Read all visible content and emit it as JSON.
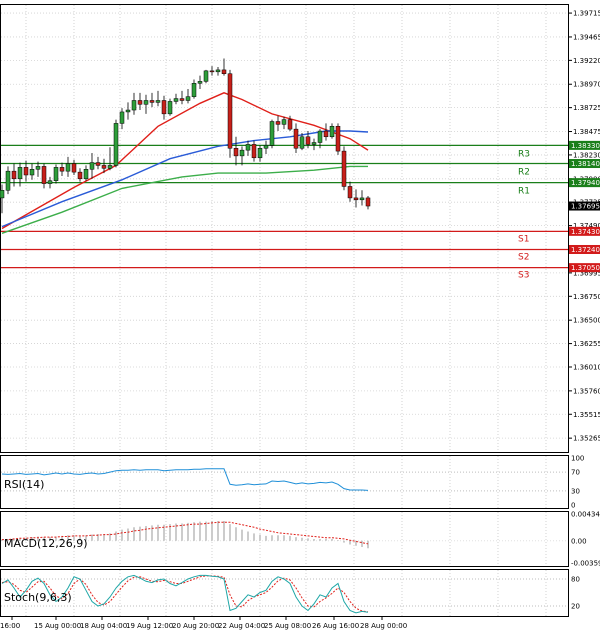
{
  "chart_data": {
    "type": "candlestick",
    "instrument_note": "USD/CAD style H4 chart",
    "price_axis": {
      "ticks": [
        "1.39715",
        "1.39465",
        "1.39220",
        "1.38970",
        "1.38725",
        "1.38475",
        "1.38230",
        "1.37980",
        "1.37735",
        "1.37490",
        "1.37240",
        "1.36995",
        "1.36750",
        "1.36500",
        "1.36255",
        "1.36010",
        "1.35760",
        "1.35515",
        "1.35265"
      ],
      "ylim": [
        1.3512,
        1.3981
      ]
    },
    "current_price": "1.37695",
    "levels": [
      {
        "label": "R3",
        "value": 1.3833,
        "text": "1.38330",
        "kind": "resistance"
      },
      {
        "label": "R2",
        "value": 1.3814,
        "text": "1.38140",
        "kind": "resistance"
      },
      {
        "label": "R1",
        "value": 1.3794,
        "text": "1.37940",
        "kind": "resistance"
      },
      {
        "label": "S1",
        "value": 1.3743,
        "text": "1.37430",
        "kind": "support"
      },
      {
        "label": "S2",
        "value": 1.3724,
        "text": "1.37240",
        "kind": "support"
      },
      {
        "label": "S3",
        "value": 1.3705,
        "text": "1.37050",
        "kind": "support"
      }
    ],
    "time_labels": [
      "16:00",
      "15 Aug 00:00",
      "18 Aug 04:00",
      "19 Aug 12:00",
      "20 Aug 20:00",
      "22 Aug 04:00",
      "25 Aug 08:00",
      "26 Aug 16:00",
      "28 Aug 00:00"
    ],
    "candles": [
      [
        1.3778,
        1.3792,
        1.3762,
        1.3786
      ],
      [
        1.3786,
        1.3811,
        1.3782,
        1.3806
      ],
      [
        1.3806,
        1.3814,
        1.379,
        1.3798
      ],
      [
        1.3798,
        1.3815,
        1.379,
        1.381
      ],
      [
        1.381,
        1.3817,
        1.3795,
        1.3802
      ],
      [
        1.3802,
        1.3814,
        1.3797,
        1.3808
      ],
      [
        1.3808,
        1.3816,
        1.38,
        1.3811
      ],
      [
        1.3811,
        1.3814,
        1.3788,
        1.3793
      ],
      [
        1.3793,
        1.38,
        1.3788,
        1.3796
      ],
      [
        1.3796,
        1.3813,
        1.3793,
        1.381
      ],
      [
        1.381,
        1.3815,
        1.3801,
        1.3806
      ],
      [
        1.3806,
        1.3821,
        1.38,
        1.3814
      ],
      [
        1.3814,
        1.3818,
        1.3802,
        1.3805
      ],
      [
        1.3805,
        1.3809,
        1.3795,
        1.3798
      ],
      [
        1.3798,
        1.3812,
        1.3796,
        1.3808
      ],
      [
        1.3808,
        1.3825,
        1.3798,
        1.3815
      ],
      [
        1.3815,
        1.3821,
        1.3808,
        1.3812
      ],
      [
        1.3812,
        1.3819,
        1.3804,
        1.3809
      ],
      [
        1.3809,
        1.3831,
        1.3807,
        1.3812
      ],
      [
        1.3812,
        1.386,
        1.381,
        1.3856
      ],
      [
        1.3856,
        1.3872,
        1.385,
        1.3868
      ],
      [
        1.3868,
        1.3878,
        1.386,
        1.387
      ],
      [
        1.387,
        1.3888,
        1.3865,
        1.388
      ],
      [
        1.388,
        1.3888,
        1.387,
        1.3876
      ],
      [
        1.3876,
        1.3886,
        1.3866,
        1.388
      ],
      [
        1.388,
        1.3888,
        1.3873,
        1.3878
      ],
      [
        1.3878,
        1.389,
        1.3874,
        1.388
      ],
      [
        1.388,
        1.3885,
        1.386,
        1.3866
      ],
      [
        1.3866,
        1.3882,
        1.3864,
        1.3879
      ],
      [
        1.3879,
        1.3887,
        1.3876,
        1.3882
      ],
      [
        1.3882,
        1.389,
        1.3876,
        1.388
      ],
      [
        1.388,
        1.3892,
        1.3877,
        1.3884
      ],
      [
        1.3884,
        1.3902,
        1.3882,
        1.3898
      ],
      [
        1.3898,
        1.3906,
        1.3892,
        1.39
      ],
      [
        1.39,
        1.3912,
        1.3898,
        1.3911
      ],
      [
        1.3911,
        1.3916,
        1.3906,
        1.391
      ],
      [
        1.391,
        1.3915,
        1.3906,
        1.3912
      ],
      [
        1.3912,
        1.3924,
        1.3906,
        1.3908
      ],
      [
        1.3908,
        1.3912,
        1.382,
        1.383
      ],
      [
        1.383,
        1.3842,
        1.3812,
        1.3822
      ],
      [
        1.3822,
        1.3832,
        1.3812,
        1.3828
      ],
      [
        1.3828,
        1.3838,
        1.3822,
        1.3834
      ],
      [
        1.3834,
        1.3838,
        1.3816,
        1.382
      ],
      [
        1.382,
        1.3833,
        1.3816,
        1.383
      ],
      [
        1.383,
        1.3838,
        1.3824,
        1.3833
      ],
      [
        1.3833,
        1.386,
        1.383,
        1.3858
      ],
      [
        1.3858,
        1.3864,
        1.3848,
        1.3855
      ],
      [
        1.3855,
        1.3863,
        1.385,
        1.386
      ],
      [
        1.386,
        1.3864,
        1.3848,
        1.385
      ],
      [
        1.385,
        1.3856,
        1.3825,
        1.383
      ],
      [
        1.383,
        1.3846,
        1.3828,
        1.3842
      ],
      [
        1.3842,
        1.3848,
        1.383,
        1.3834
      ],
      [
        1.3834,
        1.384,
        1.3828,
        1.3836
      ],
      [
        1.3836,
        1.385,
        1.383,
        1.3848
      ],
      [
        1.3848,
        1.3856,
        1.3838,
        1.3842
      ],
      [
        1.3842,
        1.3856,
        1.384,
        1.3853
      ],
      [
        1.3853,
        1.3856,
        1.3823,
        1.3827
      ],
      [
        1.3827,
        1.3832,
        1.3786,
        1.379
      ],
      [
        1.379,
        1.3795,
        1.3774,
        1.3778
      ],
      [
        1.3778,
        1.3787,
        1.3768,
        1.3776
      ],
      [
        1.3776,
        1.3786,
        1.377,
        1.3778
      ],
      [
        1.3778,
        1.378,
        1.3766,
        1.37695
      ]
    ],
    "moving_averages": [
      {
        "name": "MA fast",
        "color": "#e0201a",
        "points": [
          [
            0,
            1.3746
          ],
          [
            12,
            1.3789
          ],
          [
            19,
            1.3812
          ],
          [
            26,
            1.3853
          ],
          [
            33,
            1.3877
          ],
          [
            37,
            1.3888
          ],
          [
            40,
            1.3881
          ],
          [
            45,
            1.3866
          ],
          [
            52,
            1.3854
          ],
          [
            58,
            1.384
          ],
          [
            61,
            1.3828
          ]
        ]
      },
      {
        "name": "MA mid",
        "color": "#2a5bd7",
        "points": [
          [
            0,
            1.3748
          ],
          [
            10,
            1.3774
          ],
          [
            20,
            1.3797
          ],
          [
            28,
            1.3819
          ],
          [
            36,
            1.3832
          ],
          [
            42,
            1.3838
          ],
          [
            48,
            1.3842
          ],
          [
            54,
            1.3848
          ],
          [
            58,
            1.3848
          ],
          [
            61,
            1.3847
          ]
        ]
      },
      {
        "name": "MA slow",
        "color": "#3cae4a",
        "points": [
          [
            0,
            1.3741
          ],
          [
            10,
            1.3763
          ],
          [
            20,
            1.3788
          ],
          [
            30,
            1.38
          ],
          [
            36,
            1.3804
          ],
          [
            44,
            1.3804
          ],
          [
            52,
            1.3807
          ],
          [
            58,
            1.3811
          ],
          [
            61,
            1.3811
          ]
        ]
      }
    ],
    "indicators": {
      "rsi": {
        "label": "RSI(14)",
        "ticks": [
          "100",
          "70",
          "30",
          "0"
        ],
        "color": "#1f8fd8",
        "values": [
          66,
          65,
          66,
          67,
          65,
          66,
          67,
          64,
          66,
          68,
          66,
          68,
          66,
          65,
          67,
          68,
          66,
          67,
          70,
          73,
          74,
          74,
          75,
          74,
          75,
          75,
          75,
          73,
          74,
          75,
          75,
          75,
          76,
          76,
          77,
          77,
          77,
          77,
          44,
          42,
          43,
          45,
          43,
          44,
          45,
          51,
          50,
          51,
          48,
          45,
          47,
          45,
          46,
          48,
          47,
          49,
          44,
          35,
          32,
          32,
          32,
          31
        ]
      },
      "macd": {
        "label": "MACD(12,26,9)",
        "ticks": [
          "0.00434",
          "0.00",
          "-0.003597"
        ],
        "hist_color": "#9a9a9a",
        "signal_color": "#e0201a",
        "histogram": [
          0.0002,
          0.0003,
          0.0004,
          0.0005,
          0.0005,
          0.0006,
          0.0007,
          0.0006,
          0.0006,
          0.0007,
          0.0008,
          0.0009,
          0.0009,
          0.0008,
          0.0009,
          0.001,
          0.0011,
          0.0011,
          0.0012,
          0.0015,
          0.0018,
          0.002,
          0.0022,
          0.0023,
          0.0024,
          0.0025,
          0.0026,
          0.0026,
          0.0027,
          0.0028,
          0.0028,
          0.0029,
          0.003,
          0.0031,
          0.0031,
          0.0032,
          0.0032,
          0.0032,
          0.0027,
          0.0022,
          0.0018,
          0.0015,
          0.0012,
          0.001,
          0.0008,
          0.0009,
          0.0009,
          0.0009,
          0.0008,
          0.0006,
          0.0005,
          0.0004,
          0.0003,
          0.0003,
          0.0003,
          0.0003,
          0.0001,
          -0.0003,
          -0.0006,
          -0.0008,
          -0.001,
          -0.0012
        ],
        "signal": [
          0.0002,
          0.0002,
          0.0003,
          0.0004,
          0.0004,
          0.0005,
          0.0005,
          0.0006,
          0.0006,
          0.0006,
          0.0007,
          0.0007,
          0.0008,
          0.0008,
          0.0008,
          0.0009,
          0.0009,
          0.001,
          0.001,
          0.0011,
          0.0013,
          0.0014,
          0.0016,
          0.0017,
          0.0019,
          0.002,
          0.0021,
          0.0022,
          0.0023,
          0.0024,
          0.0025,
          0.0026,
          0.0027,
          0.0027,
          0.0028,
          0.0029,
          0.003,
          0.003,
          0.003,
          0.0028,
          0.0026,
          0.0024,
          0.0022,
          0.0019,
          0.0017,
          0.0015,
          0.0013,
          0.0012,
          0.0011,
          0.001,
          0.0009,
          0.0008,
          0.0007,
          0.0006,
          0.0005,
          0.0005,
          0.0004,
          0.0003,
          0.0001,
          -0.0001,
          -0.0003,
          -0.0005
        ]
      },
      "stoch": {
        "label": "Stoch(9,6,3)",
        "ticks": [
          "80",
          "20"
        ],
        "main_color": "#1fa7a7",
        "signal_color": "#e0201a",
        "main": [
          70,
          78,
          60,
          40,
          55,
          75,
          82,
          70,
          45,
          30,
          40,
          60,
          85,
          80,
          55,
          30,
          20,
          25,
          40,
          60,
          75,
          85,
          88,
          82,
          75,
          72,
          78,
          80,
          70,
          65,
          72,
          80,
          85,
          88,
          88,
          86,
          85,
          80,
          10,
          15,
          30,
          45,
          40,
          50,
          55,
          75,
          85,
          80,
          70,
          40,
          20,
          10,
          25,
          45,
          40,
          60,
          70,
          30,
          10,
          5,
          8,
          6
        ],
        "signal": [
          72,
          74,
          68,
          55,
          50,
          62,
          74,
          75,
          60,
          42,
          36,
          48,
          70,
          80,
          68,
          45,
          28,
          22,
          30,
          46,
          62,
          76,
          84,
          85,
          80,
          75,
          74,
          77,
          74,
          70,
          70,
          75,
          80,
          85,
          87,
          87,
          86,
          84,
          45,
          20,
          18,
          32,
          40,
          45,
          50,
          62,
          76,
          82,
          78,
          60,
          38,
          20,
          18,
          30,
          38,
          48,
          60,
          50,
          30,
          15,
          9,
          7
        ]
      }
    }
  }
}
